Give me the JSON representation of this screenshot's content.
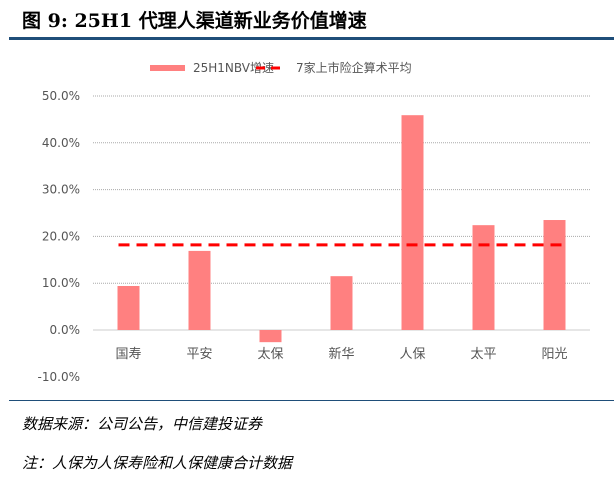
{
  "title": "图 9: 25H1 代理人渠道新业务价值增速",
  "source": "数据来源：公司公告，中信建投证券",
  "note": "注：人保为人保寿险和人保健康合计数据",
  "chart_data": {
    "type": "bar",
    "categories": [
      "国寿",
      "平安",
      "太保",
      "新华",
      "人保",
      "太平",
      "阳光"
    ],
    "series": [
      {
        "name": "25H1NBV增速",
        "type": "bar",
        "color": "#ff8080",
        "values": [
          9.4,
          16.9,
          -2.6,
          11.5,
          45.9,
          22.4,
          23.5
        ]
      },
      {
        "name": "7家上市险企算术平均",
        "type": "line-dashed",
        "color": "#ff0000",
        "values": [
          18.2,
          18.2,
          18.2,
          18.2,
          18.2,
          18.2,
          18.2
        ]
      }
    ],
    "ylim": [
      -10,
      50
    ],
    "yticks": [
      "-10.0%",
      "0.0%",
      "10.0%",
      "20.0%",
      "30.0%",
      "40.0%",
      "50.0%"
    ],
    "grid": true,
    "legend": "top"
  }
}
